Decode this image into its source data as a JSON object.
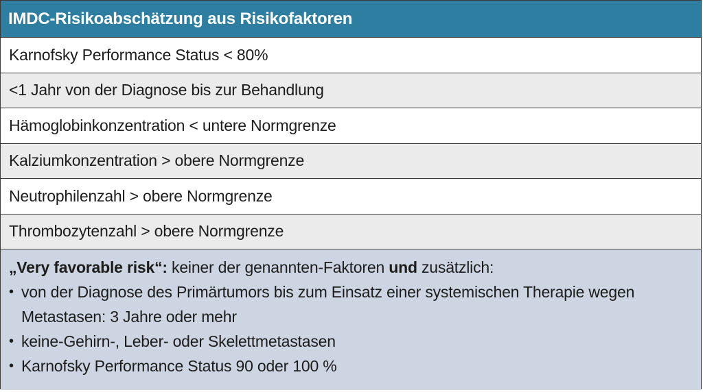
{
  "table": {
    "title": "IMDC-Risikoabschätzung aus Risikofaktoren",
    "rows": [
      "Karnofsky Performance Status < 80%",
      "<1 Jahr von der Diagnose bis zur Behandlung",
      "Hämoglobinkonzentration < untere Normgrenze",
      "Kalziumkonzentration > obere Normgrenze",
      "Neutrophilenzahl > obere Normgrenze",
      "Thrombozytenzahl > obere Normgrenze"
    ],
    "note": {
      "lead_bold": "„Very favorable risk“:",
      "lead_text_1": " keiner der genannten-Faktoren ",
      "lead_bold_2": "und",
      "lead_text_2": " zusätzlich:",
      "bullet_symbol": "•",
      "bullets": [
        "von der Diagnose des Primärtumors bis zum Einsatz einer systemischen Therapie wegen Metastasen: 3 Jahre oder mehr",
        "keine-Gehirn-, Leber- oder Skelettmetastasen",
        "Karnofsky Performance Status 90 oder 100 %"
      ]
    }
  },
  "colors": {
    "header_bg": "#2e7ea1",
    "row_grey": "#ebebeb",
    "note_bg": "#ccd5e1"
  }
}
